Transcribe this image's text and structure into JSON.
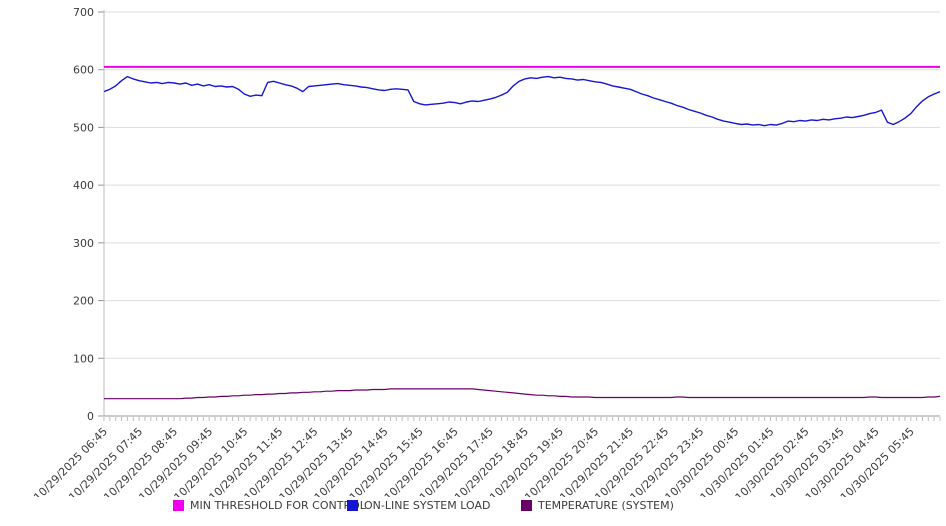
{
  "chart_data": {
    "type": "line",
    "title": "",
    "xlabel": "",
    "ylabel": "",
    "ylim": [
      0,
      700
    ],
    "y_ticks": [
      0,
      100,
      200,
      300,
      400,
      500,
      600,
      700
    ],
    "grid": true,
    "legend_position": "bottom",
    "x_labels": [
      "10/29/2025 06:45",
      "10/29/2025 07:45",
      "10/29/2025 08:45",
      "10/29/2025 09:45",
      "10/29/2025 10:45",
      "10/29/2025 11:45",
      "10/29/2025 12:45",
      "10/29/2025 13:45",
      "10/29/2025 14:45",
      "10/29/2025 15:45",
      "10/29/2025 16:45",
      "10/29/2025 17:45",
      "10/29/2025 18:45",
      "10/29/2025 19:45",
      "10/29/2025 20:45",
      "10/29/2025 21:45",
      "10/29/2025 22:45",
      "10/29/2025 23:45",
      "10/30/2025 00:45",
      "10/30/2025 01:45",
      "10/30/2025 02:45",
      "10/30/2025 03:45",
      "10/30/2025 04:45",
      "10/30/2025 05:45"
    ],
    "points_per_label": 6,
    "sample_interval_minutes": 10,
    "series": [
      {
        "name": "MIN THRESHOLD FOR CONTROL",
        "color": "#ee00ee",
        "type": "constant",
        "value": 605,
        "line_width": 2
      },
      {
        "name": "ON-LINE SYSTEM LOAD",
        "color": "#1616d2",
        "type": "line",
        "line_width": 1.4,
        "values": [
          562,
          566,
          572,
          581,
          588,
          584,
          581,
          579,
          577,
          578,
          576,
          578,
          577,
          575,
          577,
          573,
          575,
          572,
          574,
          571,
          572,
          570,
          571,
          566,
          558,
          554,
          556,
          555,
          578,
          580,
          577,
          574,
          572,
          568,
          562,
          571,
          572,
          573,
          574,
          575,
          576,
          574,
          573,
          572,
          570,
          569,
          567,
          565,
          564,
          566,
          567,
          566,
          565,
          545,
          541,
          539,
          540,
          541,
          542,
          544,
          543,
          541,
          544,
          546,
          545,
          547,
          549,
          552,
          556,
          561,
          572,
          580,
          584,
          586,
          585,
          587,
          588,
          586,
          587,
          585,
          584,
          582,
          583,
          581,
          579,
          578,
          575,
          572,
          570,
          568,
          566,
          562,
          558,
          555,
          551,
          548,
          545,
          542,
          538,
          535,
          531,
          528,
          525,
          521,
          518,
          514,
          511,
          509,
          507,
          505,
          506,
          504,
          505,
          503,
          505,
          504,
          507,
          511,
          510,
          512,
          511,
          513,
          512,
          514,
          513,
          515,
          516,
          518,
          517,
          519,
          521,
          524,
          526,
          530,
          509,
          505,
          510,
          516,
          524,
          536,
          546,
          553,
          558,
          562
        ]
      },
      {
        "name": "TEMPERATURE (SYSTEM)",
        "color": "#670067",
        "type": "line",
        "line_width": 1.2,
        "values": [
          30,
          30,
          30,
          30,
          30,
          30,
          30,
          30,
          30,
          30,
          30,
          30,
          30,
          30,
          31,
          31,
          32,
          32,
          33,
          33,
          34,
          34,
          35,
          35,
          36,
          36,
          37,
          37,
          38,
          38,
          39,
          39,
          40,
          40,
          41,
          41,
          42,
          42,
          43,
          43,
          44,
          44,
          44,
          45,
          45,
          45,
          46,
          46,
          46,
          47,
          47,
          47,
          47,
          47,
          47,
          47,
          47,
          47,
          47,
          47,
          47,
          47,
          47,
          47,
          46,
          45,
          44,
          43,
          42,
          41,
          40,
          39,
          38,
          37,
          36,
          36,
          35,
          35,
          34,
          34,
          33,
          33,
          33,
          33,
          32,
          32,
          32,
          32,
          32,
          32,
          32,
          32,
          32,
          32,
          32,
          32,
          32,
          32,
          33,
          33,
          32,
          32,
          32,
          32,
          32,
          32,
          32,
          32,
          32,
          32,
          32,
          32,
          32,
          32,
          32,
          32,
          32,
          32,
          32,
          32,
          32,
          32,
          32,
          32,
          32,
          32,
          32,
          32,
          32,
          32,
          32,
          33,
          33,
          32,
          32,
          32,
          32,
          32,
          32,
          32,
          32,
          33,
          33,
          34
        ]
      }
    ]
  },
  "legend": {
    "items": [
      {
        "label": "MIN THRESHOLD FOR CONTROL",
        "color": "#ee00ee"
      },
      {
        "label": "ON-LINE SYSTEM LOAD",
        "color": "#1616d2"
      },
      {
        "label": "TEMPERATURE (SYSTEM)",
        "color": "#670067"
      }
    ]
  },
  "style": {
    "grid_color": "#dddddd",
    "axis_x_color": "#999999",
    "axis_y_color": "#bbbbbb",
    "tick_color": "#999999",
    "minor_tick_color": "#bcbcbc",
    "label_color": "#3b3b3b",
    "background": "#ffffff"
  }
}
